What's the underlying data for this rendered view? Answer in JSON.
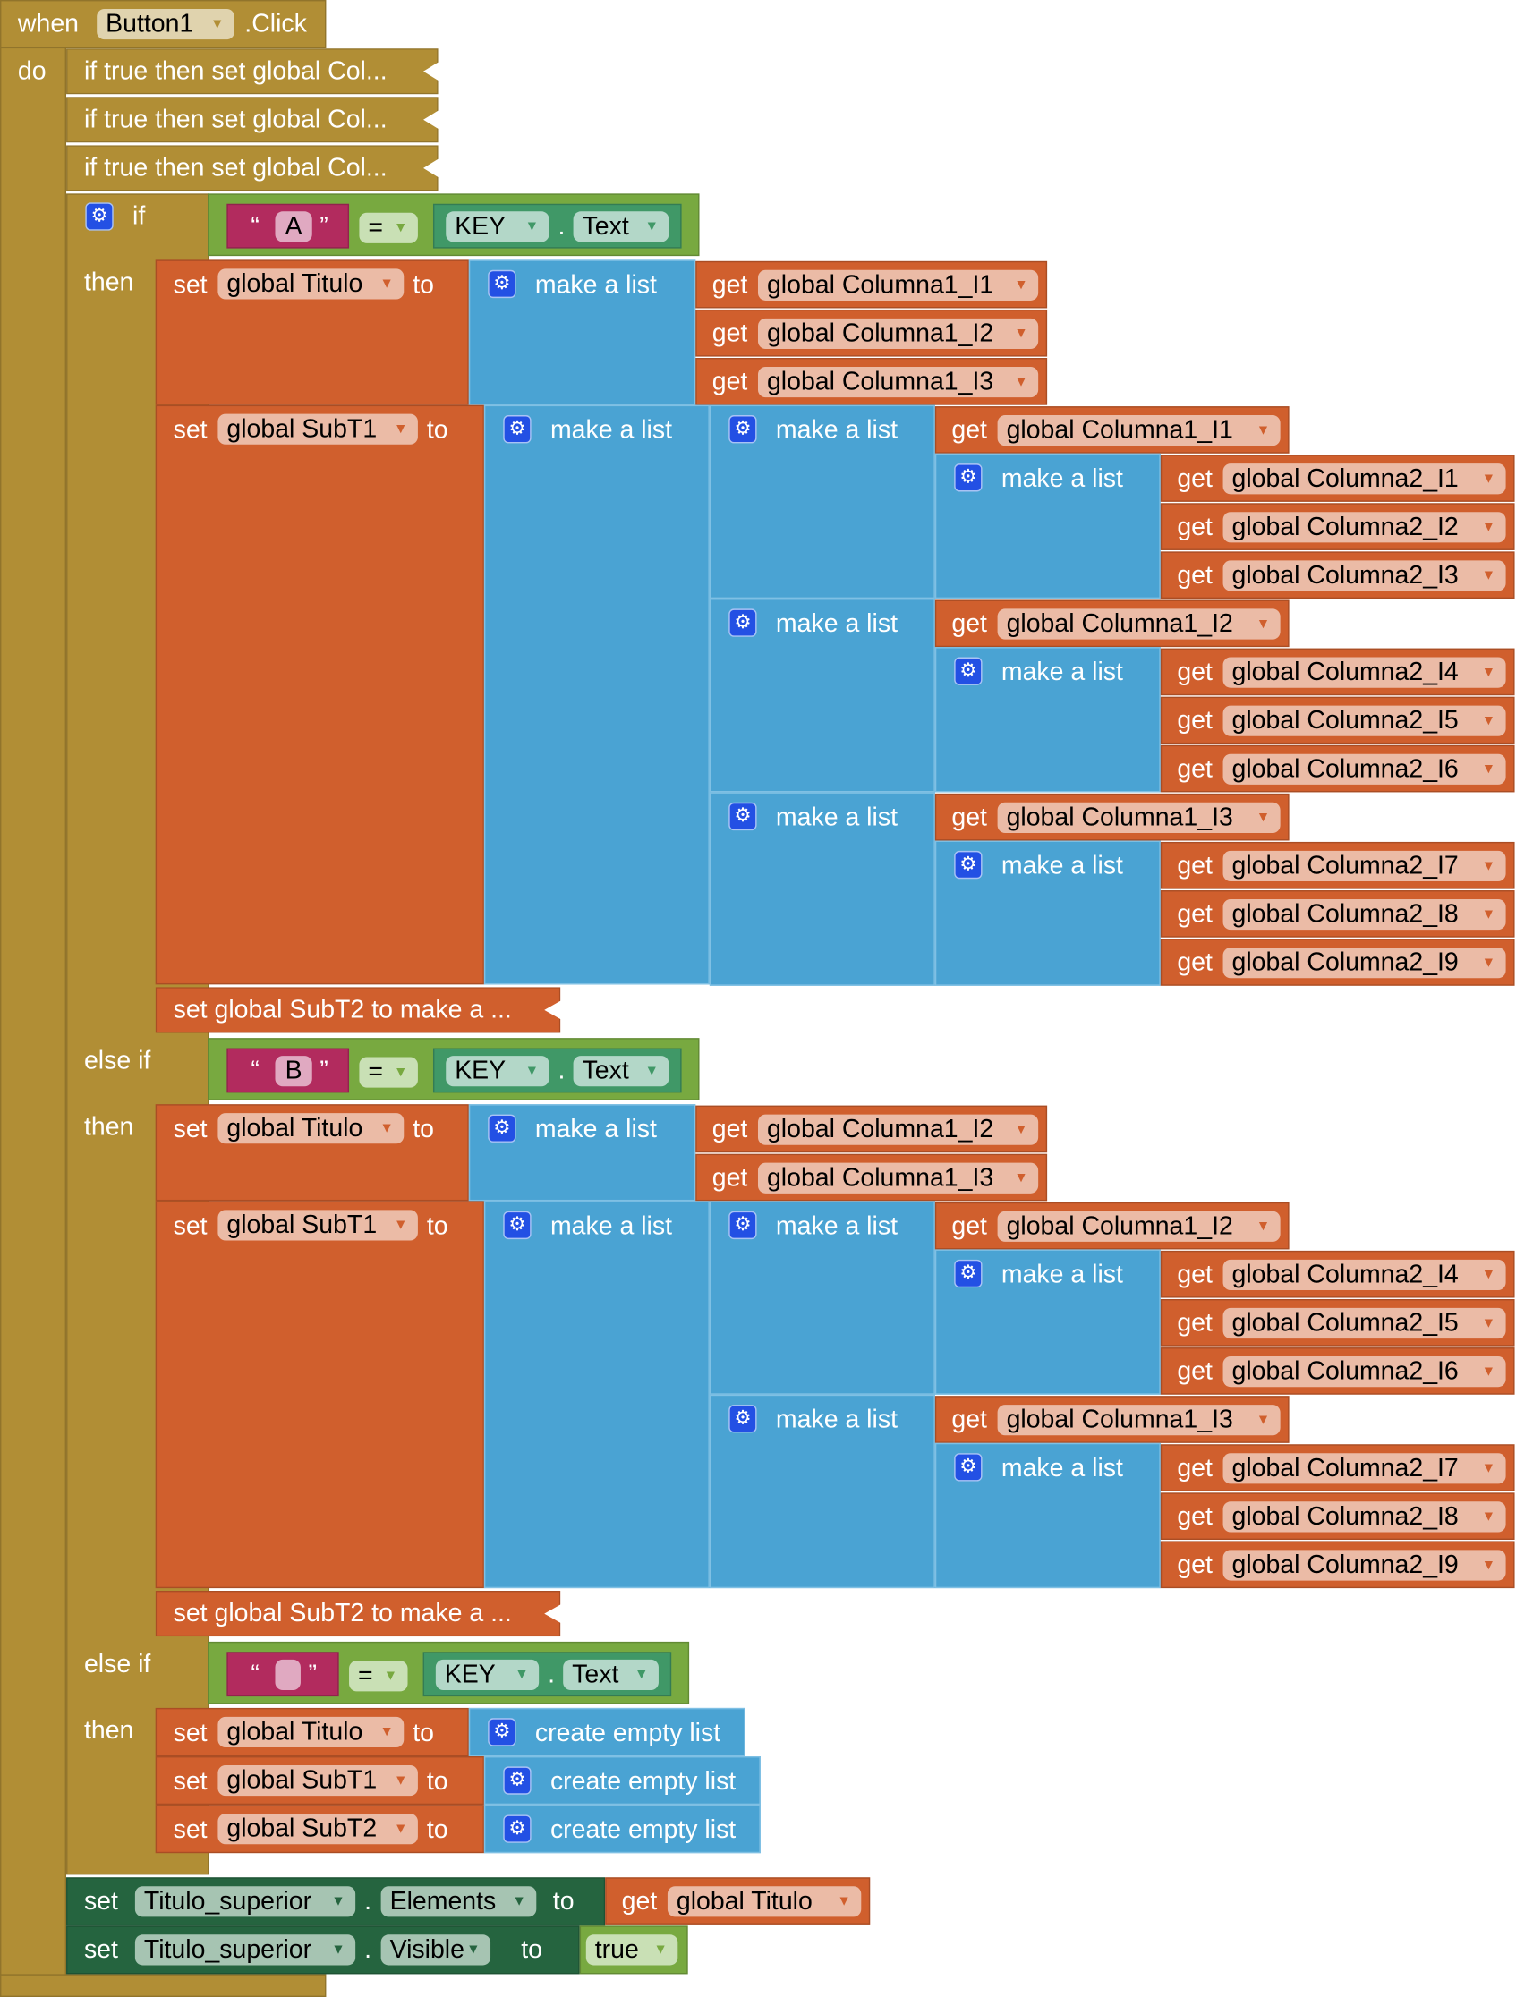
{
  "event": {
    "when": "when",
    "component": "Button1",
    "event": ".Click",
    "do": "do"
  },
  "collapsed_blocks": [
    "if true then set global Col...",
    "if true then set global Col...",
    "if true then set global Col..."
  ],
  "labels": {
    "set": "set",
    "to": "to",
    "get": "get",
    "make_list": "make a list",
    "create_empty": "create empty list",
    "dot": ".",
    "open_quote": "“",
    "close_quote": "”"
  },
  "if_block": {
    "branches": [
      {
        "keyword": "if",
        "then": "then",
        "condition": {
          "text": "A",
          "op": "=",
          "component": "KEY",
          "property": "Text"
        },
        "set_titulo": {
          "var": "global Titulo",
          "items": [
            "global Columna1_I1",
            "global Columna1_I2",
            "global Columna1_I3"
          ]
        },
        "set_subt1": {
          "var": "global SubT1",
          "groups": [
            {
              "first": "global Columna1_I1",
              "items": [
                "global Columna2_I1",
                "global Columna2_I2",
                "global Columna2_I3"
              ]
            },
            {
              "first": "global Columna1_I2",
              "items": [
                "global Columna2_I4",
                "global Columna2_I5",
                "global Columna2_I6"
              ]
            },
            {
              "first": "global Columna1_I3",
              "items": [
                "global Columna2_I7",
                "global Columna2_I8",
                "global Columna2_I9"
              ]
            }
          ]
        },
        "set_subt2": "set global SubT2 to make a ..."
      },
      {
        "keyword": "else if",
        "then": "then",
        "condition": {
          "text": "B",
          "op": "=",
          "component": "KEY",
          "property": "Text"
        },
        "set_titulo": {
          "var": "global Titulo",
          "items": [
            "global Columna1_I2",
            "global Columna1_I3"
          ]
        },
        "set_subt1": {
          "var": "global SubT1",
          "groups": [
            {
              "first": "global Columna1_I2",
              "items": [
                "global Columna2_I4",
                "global Columna2_I5",
                "global Columna2_I6"
              ]
            },
            {
              "first": "global Columna1_I3",
              "items": [
                "global Columna2_I7",
                "global Columna2_I8",
                "global Columna2_I9"
              ]
            }
          ]
        },
        "set_subt2": "set global SubT2 to make a ..."
      },
      {
        "keyword": "else if",
        "then": "then",
        "condition": {
          "text": "",
          "op": "=",
          "component": "KEY",
          "property": "Text"
        },
        "sets": [
          "global Titulo",
          "global SubT1",
          "global SubT2"
        ]
      }
    ]
  },
  "final_sets": [
    {
      "component": "Titulo_superior",
      "property": "Elements",
      "value_get": "global Titulo"
    },
    {
      "component": "Titulo_superior",
      "property": "Visible",
      "value": "true"
    }
  ],
  "colors": {
    "event": "#b18e35",
    "variable": "#d05f2d",
    "list": "#4aa3d3",
    "logic": "#78a940",
    "text": "#b22b5e",
    "component": "#409867",
    "setter": "#25643f"
  }
}
